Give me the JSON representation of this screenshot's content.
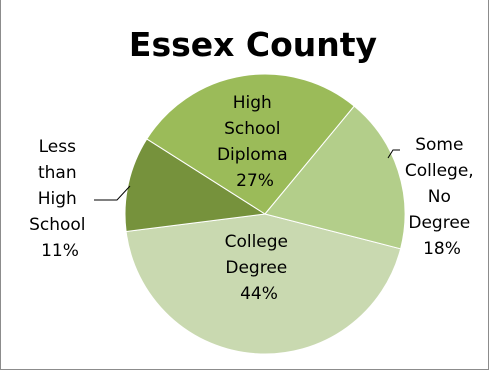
{
  "chart_data": {
    "type": "pie",
    "title": "Essex County",
    "slices": [
      {
        "line1": "College",
        "line2": "Degree",
        "line3": "",
        "line4": "",
        "percent": "44%",
        "value": 44,
        "color": "#c9d9b0"
      },
      {
        "line1": "Less",
        "line2": "than",
        "line3": "High",
        "line4": "School",
        "percent": "11%",
        "value": 11,
        "color": "#76923c"
      },
      {
        "line1": "High",
        "line2": "School",
        "line3": "Diploma",
        "line4": "",
        "percent": "27%",
        "value": 27,
        "color": "#9bbb59"
      },
      {
        "line1": "Some",
        "line2": "College,",
        "line3": "No",
        "line4": "Degree",
        "percent": "18%",
        "value": 18,
        "color": "#b3ce8a"
      }
    ],
    "legend": "none"
  }
}
